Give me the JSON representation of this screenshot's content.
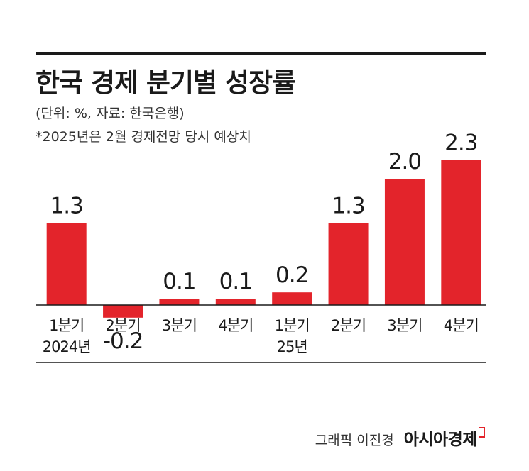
{
  "chart_data": {
    "type": "bar",
    "title": "한국 경제 분기별 성장률",
    "subtitle": "(단위: %, 자료: 한국은행)",
    "note": "*2025년은 2월 경제전망 당시 예상치",
    "categories": [
      {
        "label": "1분기",
        "sublabel": "2024년"
      },
      {
        "label": "2분기",
        "sublabel": ""
      },
      {
        "label": "3분기",
        "sublabel": ""
      },
      {
        "label": "4분기",
        "sublabel": ""
      },
      {
        "label": "1분기",
        "sublabel": "25년"
      },
      {
        "label": "2분기",
        "sublabel": ""
      },
      {
        "label": "3분기",
        "sublabel": ""
      },
      {
        "label": "4분기",
        "sublabel": ""
      }
    ],
    "values": [
      1.3,
      -0.2,
      0.1,
      0.1,
      0.2,
      1.3,
      2.0,
      2.3
    ],
    "value_labels": [
      "1.3",
      "-0.2",
      "0.1",
      "0.1",
      "0.2",
      "1.3",
      "2.0",
      "2.3"
    ],
    "bar_color": "#e3242b",
    "ylim": [
      -0.2,
      2.3
    ],
    "grid": false,
    "legend": "none"
  },
  "credit": {
    "author": "그래픽 이진경",
    "brand": "아시아경제"
  }
}
